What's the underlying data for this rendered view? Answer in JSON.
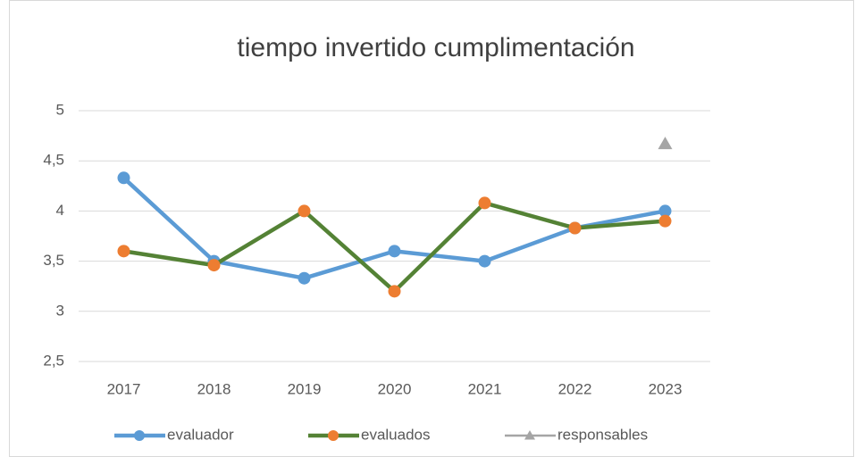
{
  "chart_data": {
    "type": "line",
    "title": "tiempo invertido cumplimentación",
    "categories": [
      "2017",
      "2018",
      "2019",
      "2020",
      "2021",
      "2022",
      "2023"
    ],
    "series": [
      {
        "name": "evaluador",
        "color": "#5b9bd5",
        "marker_color": "#5b9bd5",
        "marker": "circle",
        "values": [
          4.33,
          3.5,
          3.33,
          3.6,
          3.5,
          3.83,
          4.0
        ]
      },
      {
        "name": "evaluados",
        "color": "#548235",
        "marker_color": "#ed7d31",
        "marker": "circle",
        "values": [
          3.6,
          3.46,
          4.0,
          3.2,
          4.08,
          3.83,
          3.9
        ]
      },
      {
        "name": "responsables",
        "color": "#a5a5a5",
        "marker_color": "#a5a5a5",
        "marker": "triangle",
        "values": [
          null,
          null,
          null,
          null,
          null,
          null,
          4.67
        ]
      }
    ],
    "ylim": [
      2.5,
      5
    ],
    "yticks": [
      {
        "value": 2.5,
        "label": "2,5"
      },
      3,
      {
        "value": 3.5,
        "label": "3,5"
      },
      4,
      {
        "value": 4.5,
        "label": "4,5"
      },
      5
    ],
    "grid": true,
    "legend": "bottom"
  }
}
